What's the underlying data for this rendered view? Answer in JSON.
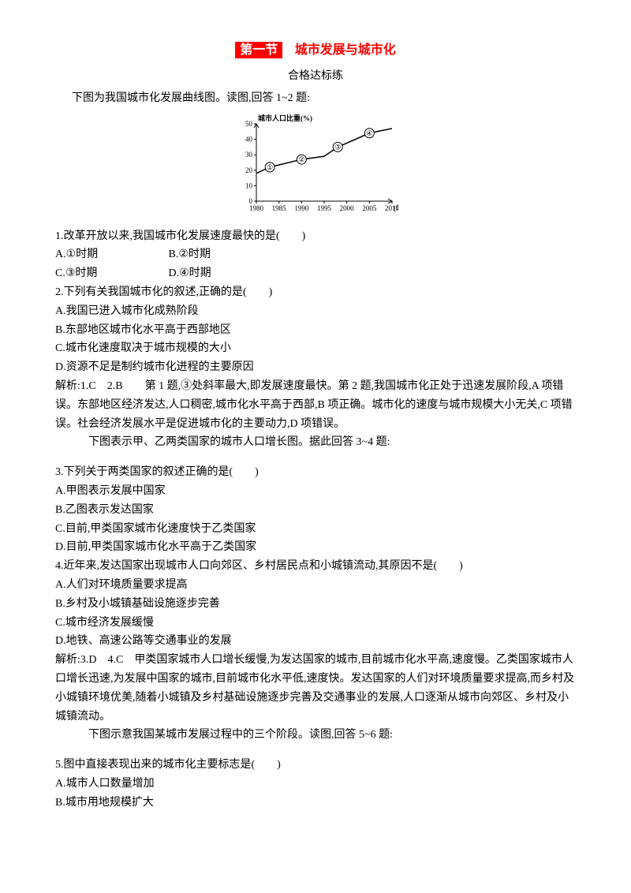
{
  "title": {
    "highlight": "第一节",
    "rest": "城市发展与城市化"
  },
  "subtitle": "合格达标练",
  "intro1": "下图为我国城市化发展曲线图。读图,回答 1~2 题:",
  "chart": {
    "type": "line",
    "ylabel": "城市人口比重(%)",
    "xlabel_suffix": "(年)",
    "x_ticks": [
      "1980",
      "1985",
      "1990",
      "1995",
      "2000",
      "2005",
      "2010"
    ],
    "y_ticks": [
      "0",
      "10",
      "20",
      "30",
      "40",
      "50"
    ],
    "ylim": [
      0,
      50
    ],
    "xlim": [
      1980,
      2010
    ],
    "points_year_value": [
      [
        1980,
        18
      ],
      [
        1983,
        22
      ],
      [
        1990,
        27
      ],
      [
        1995,
        29
      ],
      [
        1998,
        35
      ],
      [
        2005,
        44
      ],
      [
        2010,
        47
      ]
    ],
    "markers": [
      {
        "label": "①",
        "year": 1983,
        "value": 22
      },
      {
        "label": "②",
        "year": 1990,
        "value": 27
      },
      {
        "label": "③",
        "year": 1998,
        "value": 35
      },
      {
        "label": "④",
        "year": 2005,
        "value": 44
      }
    ],
    "line_color": "#000000",
    "axis_color": "#000000",
    "bg": "#ffffff",
    "font_size": 9,
    "line_width": 1.5,
    "marker_radius": 3
  },
  "q1": {
    "stem": "1.改革开放以来,我国城市化发展速度最快的是(　　)",
    "optA": "A.①时期",
    "optB": "B.②时期",
    "optC": "C.③时期",
    "optD": "D.④时期"
  },
  "q2": {
    "stem": "2.下列有关我国城市化的叙述,正确的是(　　)",
    "optA": "A.我国已进入城市化成熟阶段",
    "optB": "B.东部地区城市化水平高于西部地区",
    "optC": "C.城市化速度取决于城市规模的大小",
    "optD": "D.资源不足是制约城市化进程的主要原因"
  },
  "ans12": "解析:1.C　2.B　　第 1 题,③处斜率最大,即发展速度最快。第 2 题,我国城市化正处于迅速发展阶段,A 项错误。东部地区经济发达,人口稠密,城市化水平高于西部,B 项正确。城市化的速度与城市规模大小无关,C 项错误。社会经济发展水平是促进城市化的主要动力,D 项错误。",
  "intro2": "下图表示甲、乙两类国家的城市人口增长图。据此回答 3~4 题:",
  "q3": {
    "stem": "3.下列关于两类国家的叙述正确的是(　　)",
    "optA": "A.甲图表示发展中国家",
    "optB": "B.乙图表示发达国家",
    "optC": "C.目前,甲类国家城市化速度快于乙类国家",
    "optD": "D.目前,甲类国家城市化水平高于乙类国家"
  },
  "q4": {
    "stem": "4.近年来,发达国家出现城市人口向郊区、乡村居民点和小城镇流动,其原因不是(　　)",
    "optA": "A.人们对环境质量要求提高",
    "optB": "B.乡村及小城镇基础设施逐步完善",
    "optC": "C.城市经济发展缓慢",
    "optD": "D.地铁、高速公路等交通事业的发展"
  },
  "ans34": "解析:3.D　4.C　甲类国家城市人口增长缓慢,为发达国家的城市,目前城市化水平高,速度慢。乙类国家城市人口增长迅速,为发展中国家的城市,目前城市化水平低,速度快。发达国家的人们对环境质量要求提高,而乡村及小城镇环境优美,随着小城镇及乡村基础设施逐步完善及交通事业的发展,人口逐渐从城市向郊区、乡村及小城镇流动。",
  "intro3": "下图示意我国某城市发展过程中的三个阶段。读图,回答 5~6 题:",
  "q5": {
    "stem": "5.图中直接表现出来的城市化主要标志是(　　)",
    "optA": "A.城市人口数量增加",
    "optB": "B.城市用地规模扩大"
  }
}
